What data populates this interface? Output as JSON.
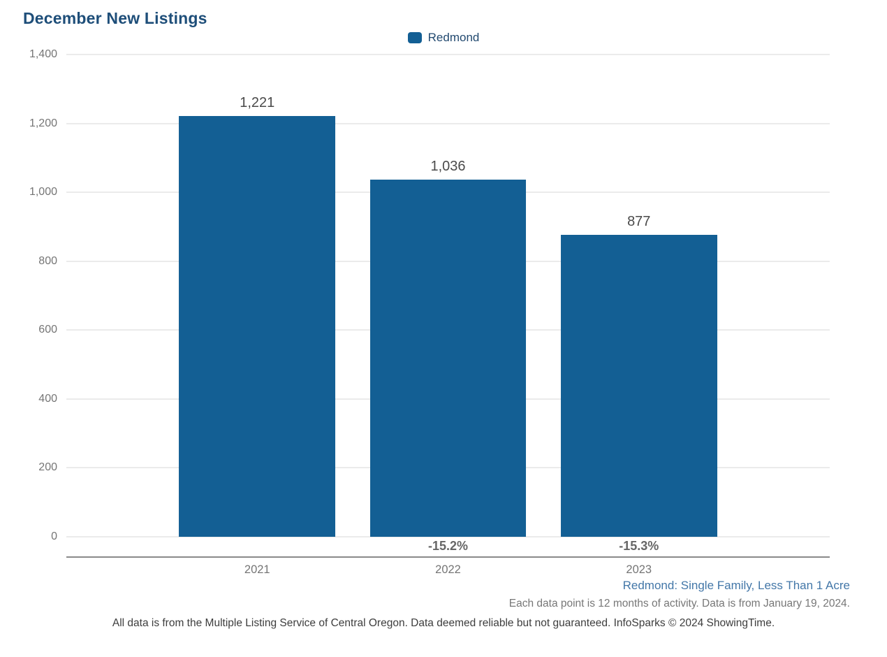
{
  "page": {
    "title": "December New Listings"
  },
  "legend": {
    "label": "Redmond",
    "swatch_icon": "legend-swatch-redmond",
    "swatch_color": "#135f94"
  },
  "chart_data": {
    "type": "bar",
    "title": "December New Listings",
    "categories": [
      "2021",
      "2022",
      "2023"
    ],
    "series": [
      {
        "name": "Redmond",
        "values": [
          1221,
          1036,
          877
        ]
      }
    ],
    "value_labels": [
      "1,221",
      "1,036",
      "877"
    ],
    "pct_change_labels": [
      "",
      "-15.2%",
      "-15.3%"
    ],
    "xlabel": "",
    "ylabel": "",
    "ylim": [
      0,
      1400
    ],
    "ytick_step": 200,
    "ytick_labels": [
      "1,400",
      "1,200",
      "1,000",
      "800",
      "600",
      "400",
      "200",
      "0"
    ],
    "grid": true,
    "legend_position": "top-center",
    "bar_color": "#135f94",
    "bar_centers_pct": [
      25,
      50,
      75
    ],
    "bar_width_pct": 20.49
  },
  "footnotes": {
    "segment": "Redmond: Single Family, Less Than 1 Acre",
    "data_note": "Each data point is 12 months of activity. Data is from January 19, 2024.",
    "disclaimer": "All data is from the Multiple Listing Service of Central Oregon. Data deemed reliable but not guaranteed. InfoSparks © 2024 ShowingTime."
  },
  "colors": {
    "title_text": "#1e4e79",
    "bar": "#135f94",
    "gridline": "#ebebeb",
    "axis_line": "#8a8a8a",
    "tick_text": "#757575",
    "value_text": "#4a4a4a",
    "pct_text": "#666666",
    "segment_text": "#4377a8",
    "note_text": "#777777",
    "disclaimer_text": "#3d3d3d"
  }
}
